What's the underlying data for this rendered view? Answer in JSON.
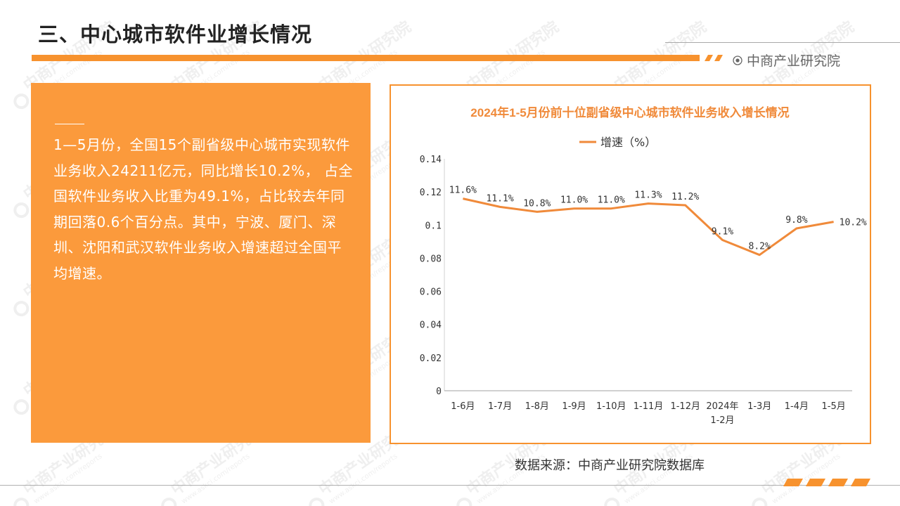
{
  "header": {
    "title": "三、中心城市软件业增长情况",
    "brand": "中商产业研究院",
    "brand_icon": "target-circle-icon",
    "accent_color": "#f7922e"
  },
  "summary": {
    "text": "1—5月份，全国15个副省级中心城市实现软件业务收入24211亿元，同比增长10.2%， 占全国软件业务收入比重为49.1%，占比较去年同期回落0.6个百分点。其中，宁波、厦门、深圳、沈阳和武汉软件业务收入增速超过全国平均增速。",
    "panel_color": "#fb9a3c"
  },
  "chart_data": {
    "type": "line",
    "title": "2024年1-5月份前十位副省级中心城市软件业务收入增长情况",
    "categories": [
      "1-6月",
      "1-7月",
      "1-8月",
      "1-9月",
      "1-10月",
      "1-11月",
      "1-12月",
      "2024年\n1-2月",
      "1-3月",
      "1-4月",
      "1-5月"
    ],
    "series": [
      {
        "name": "增速（%）",
        "values": [
          0.116,
          0.111,
          0.108,
          0.11,
          0.11,
          0.113,
          0.112,
          0.091,
          0.082,
          0.098,
          0.102
        ],
        "color": "#f08a3a"
      }
    ],
    "data_labels": [
      "11.6%",
      "11.1%",
      "10.8%",
      "11.0%",
      "11.0%",
      "11.3%",
      "11.2%",
      "9.1%",
      "8.2%",
      "9.8%",
      "10.2%"
    ],
    "yticks": [
      "0",
      "0.02",
      "0.04",
      "0.06",
      "0.08",
      "0.1",
      "0.12",
      "0.14"
    ],
    "ylim": [
      0,
      0.14
    ],
    "grid": false,
    "legend_position": "top"
  },
  "source": "数据来源：中商产业研究院数据库",
  "watermark": {
    "text": "中商产业研究院",
    "subtext": "www.askci.com/reports"
  }
}
